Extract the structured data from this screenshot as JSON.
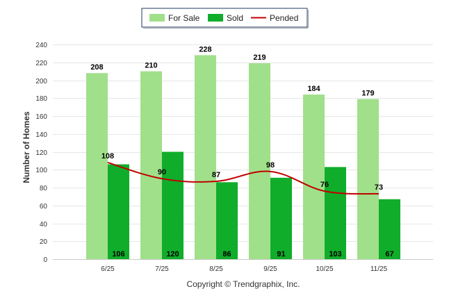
{
  "chart_data": {
    "type": "bar",
    "categories": [
      "6/25",
      "7/25",
      "8/25",
      "9/25",
      "10/25",
      "11/25"
    ],
    "series": [
      {
        "name": "For Sale",
        "kind": "bar",
        "color": "#a0e08a",
        "values": [
          208,
          210,
          228,
          219,
          184,
          179
        ]
      },
      {
        "name": "Sold",
        "kind": "bar",
        "color": "#10ad2a",
        "values": [
          106,
          120,
          86,
          91,
          103,
          67
        ]
      },
      {
        "name": "Pended",
        "kind": "line",
        "color": "#c00000",
        "values": [
          108,
          90,
          87,
          98,
          76,
          73
        ]
      }
    ],
    "ylabel": "Number of Homes",
    "xlabel": "",
    "ylim": [
      0,
      240
    ],
    "yticks": [
      0,
      20,
      40,
      60,
      80,
      100,
      120,
      140,
      160,
      180,
      200,
      220,
      240
    ],
    "grid": true,
    "legend_position": "top-center",
    "credit": "Copyright © Trendgraphix, Inc."
  }
}
